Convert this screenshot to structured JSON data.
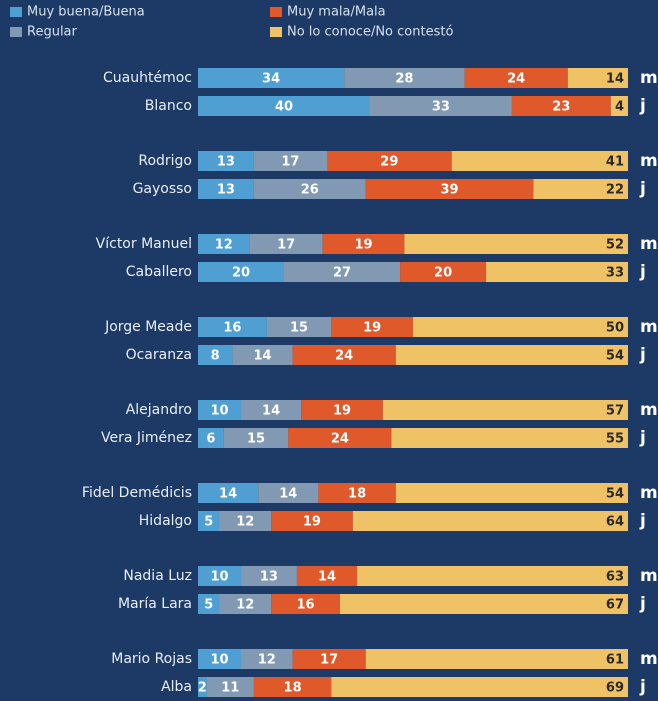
{
  "chart_data": {
    "type": "stacked-barh",
    "categories": [
      "Cuauhtémoc",
      "Blanco",
      "Rodrigo",
      "Gayosso",
      "Víctor Manuel",
      "Caballero",
      "Jorge Meade",
      "Ocaranza",
      "Alejandro",
      "Vera Jiménez",
      "Fidel Demédicis",
      "Hidalgo",
      "Nadia Luz",
      "María Lara",
      "Mario Rojas",
      "Alba"
    ],
    "row_tags": [
      "m",
      "j",
      "m",
      "j",
      "m",
      "j",
      "m",
      "j",
      "m",
      "j",
      "m",
      "j",
      "m",
      "j",
      "m",
      "j"
    ],
    "xlim": [
      0,
      100
    ],
    "series": [
      {
        "name": "Muy buena/Buena",
        "color": "#4f9fd3",
        "values": [
          34,
          40,
          13,
          13,
          12,
          20,
          16,
          8,
          10,
          6,
          14,
          5,
          10,
          5,
          10,
          2
        ]
      },
      {
        "name": "Regular",
        "color": "#8199b3",
        "values": [
          28,
          33,
          17,
          26,
          17,
          27,
          15,
          14,
          14,
          15,
          14,
          12,
          13,
          12,
          12,
          11
        ]
      },
      {
        "name": "Muy mala/Mala",
        "color": "#e0592b",
        "values": [
          24,
          23,
          29,
          39,
          19,
          20,
          19,
          24,
          19,
          24,
          18,
          19,
          14,
          16,
          17,
          18
        ]
      },
      {
        "name": "No lo conoce/No contestó",
        "color": "#f0c266",
        "values": [
          14,
          4,
          41,
          22,
          52,
          33,
          50,
          54,
          57,
          55,
          54,
          64,
          63,
          67,
          61,
          69
        ]
      }
    ]
  }
}
